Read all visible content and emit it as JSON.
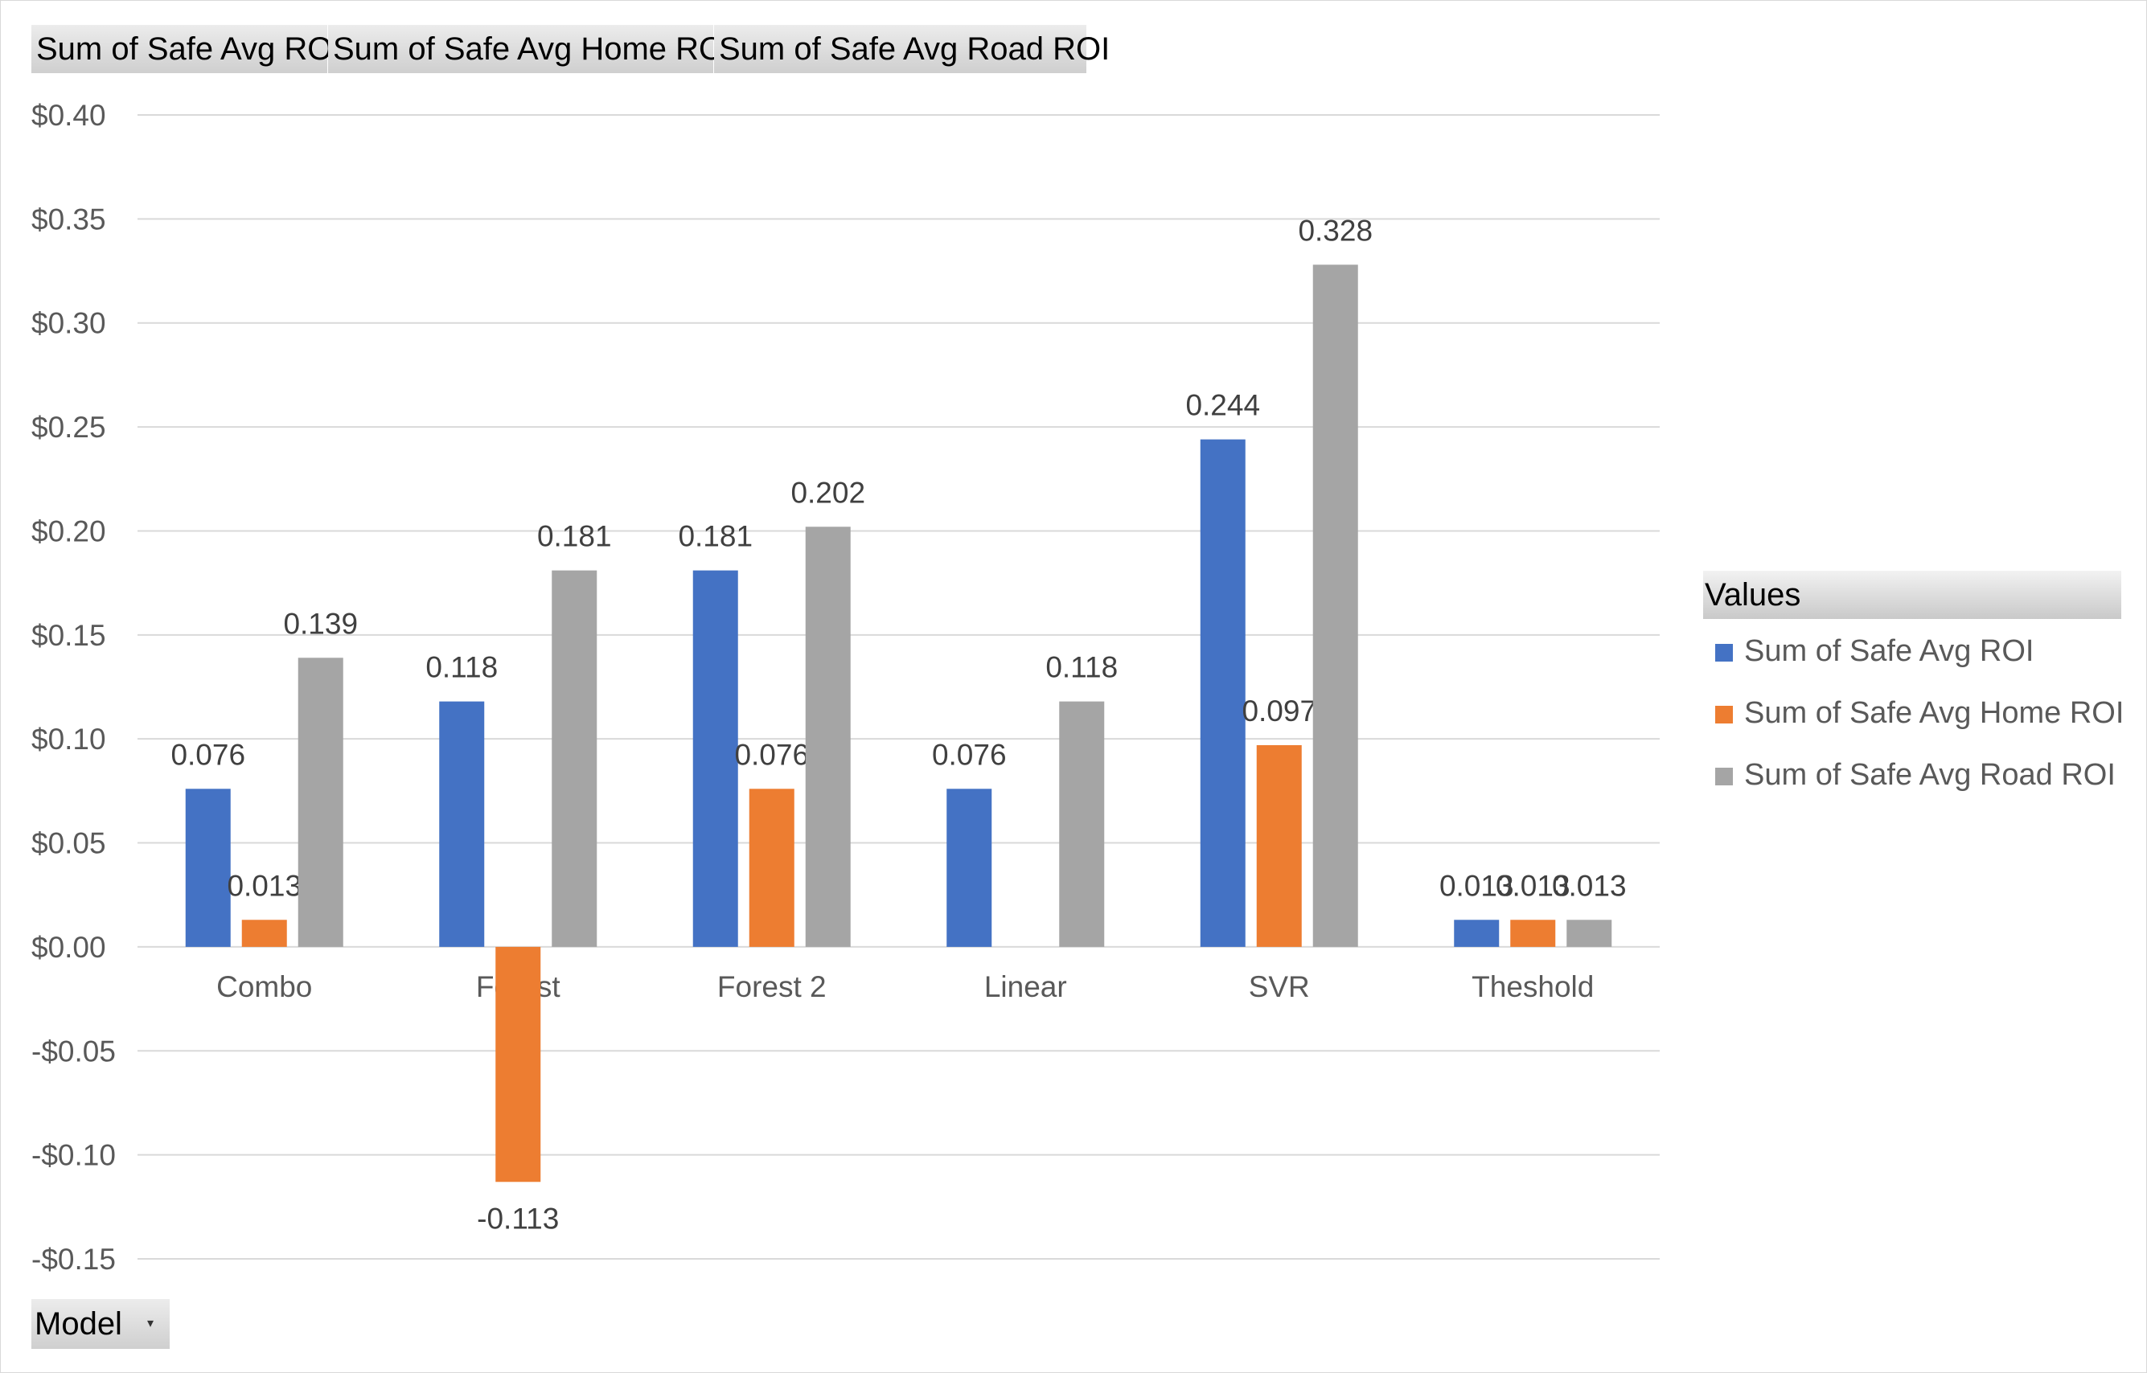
{
  "field_buttons": [
    "Sum of Safe Avg ROI",
    "Sum of Safe Avg Home ROI",
    "Sum of Safe Avg Road ROI"
  ],
  "legend": {
    "title": "Values"
  },
  "filter": {
    "label": "Model",
    "dropdown_icon": "dropdown-arrow-icon"
  },
  "colors": {
    "series1": "#4472C4",
    "series2": "#ED7D31",
    "series3": "#A5A5A5",
    "gridline": "#d9d9d9",
    "axis_text": "#595959"
  },
  "chart_data": {
    "type": "bar",
    "categories": [
      "Combo",
      "Forest",
      "Forest 2",
      "Linear",
      "SVR",
      "Theshold"
    ],
    "series": [
      {
        "name": "Sum of Safe Avg ROI",
        "values": [
          0.076,
          0.118,
          0.181,
          0.076,
          0.244,
          0.013
        ],
        "labels": [
          "0.076",
          "0.118",
          "0.181",
          "0.076",
          "0.244",
          "0.013"
        ]
      },
      {
        "name": "Sum of Safe Avg Home ROI",
        "values": [
          0.013,
          -0.113,
          0.076,
          0,
          0.097,
          0.013
        ],
        "labels": [
          "0.013",
          "-0.113",
          "0.076",
          "",
          "0.097",
          "0.013"
        ]
      },
      {
        "name": "Sum of Safe Avg Road ROI",
        "values": [
          0.139,
          0.181,
          0.202,
          0.118,
          0.328,
          0.013
        ],
        "labels": [
          "0.139",
          "0.181",
          "0.202",
          "0.118",
          "0.328",
          "0.013"
        ]
      }
    ],
    "ylim": [
      -0.15,
      0.4
    ],
    "yticks": [
      0.4,
      0.35,
      0.3,
      0.25,
      0.2,
      0.15,
      0.1,
      0.05,
      0,
      -0.05,
      -0.1,
      -0.15
    ],
    "ytick_labels": [
      "$0.40",
      "$0.35",
      "$0.30",
      "$0.25",
      "$0.20",
      "$0.15",
      "$0.10",
      "$0.05",
      "$0.00",
      "-$0.05",
      "-$0.10",
      "-$0.15"
    ],
    "title": "",
    "xlabel": "",
    "ylabel": "",
    "grid": true,
    "legend_position": "right"
  }
}
